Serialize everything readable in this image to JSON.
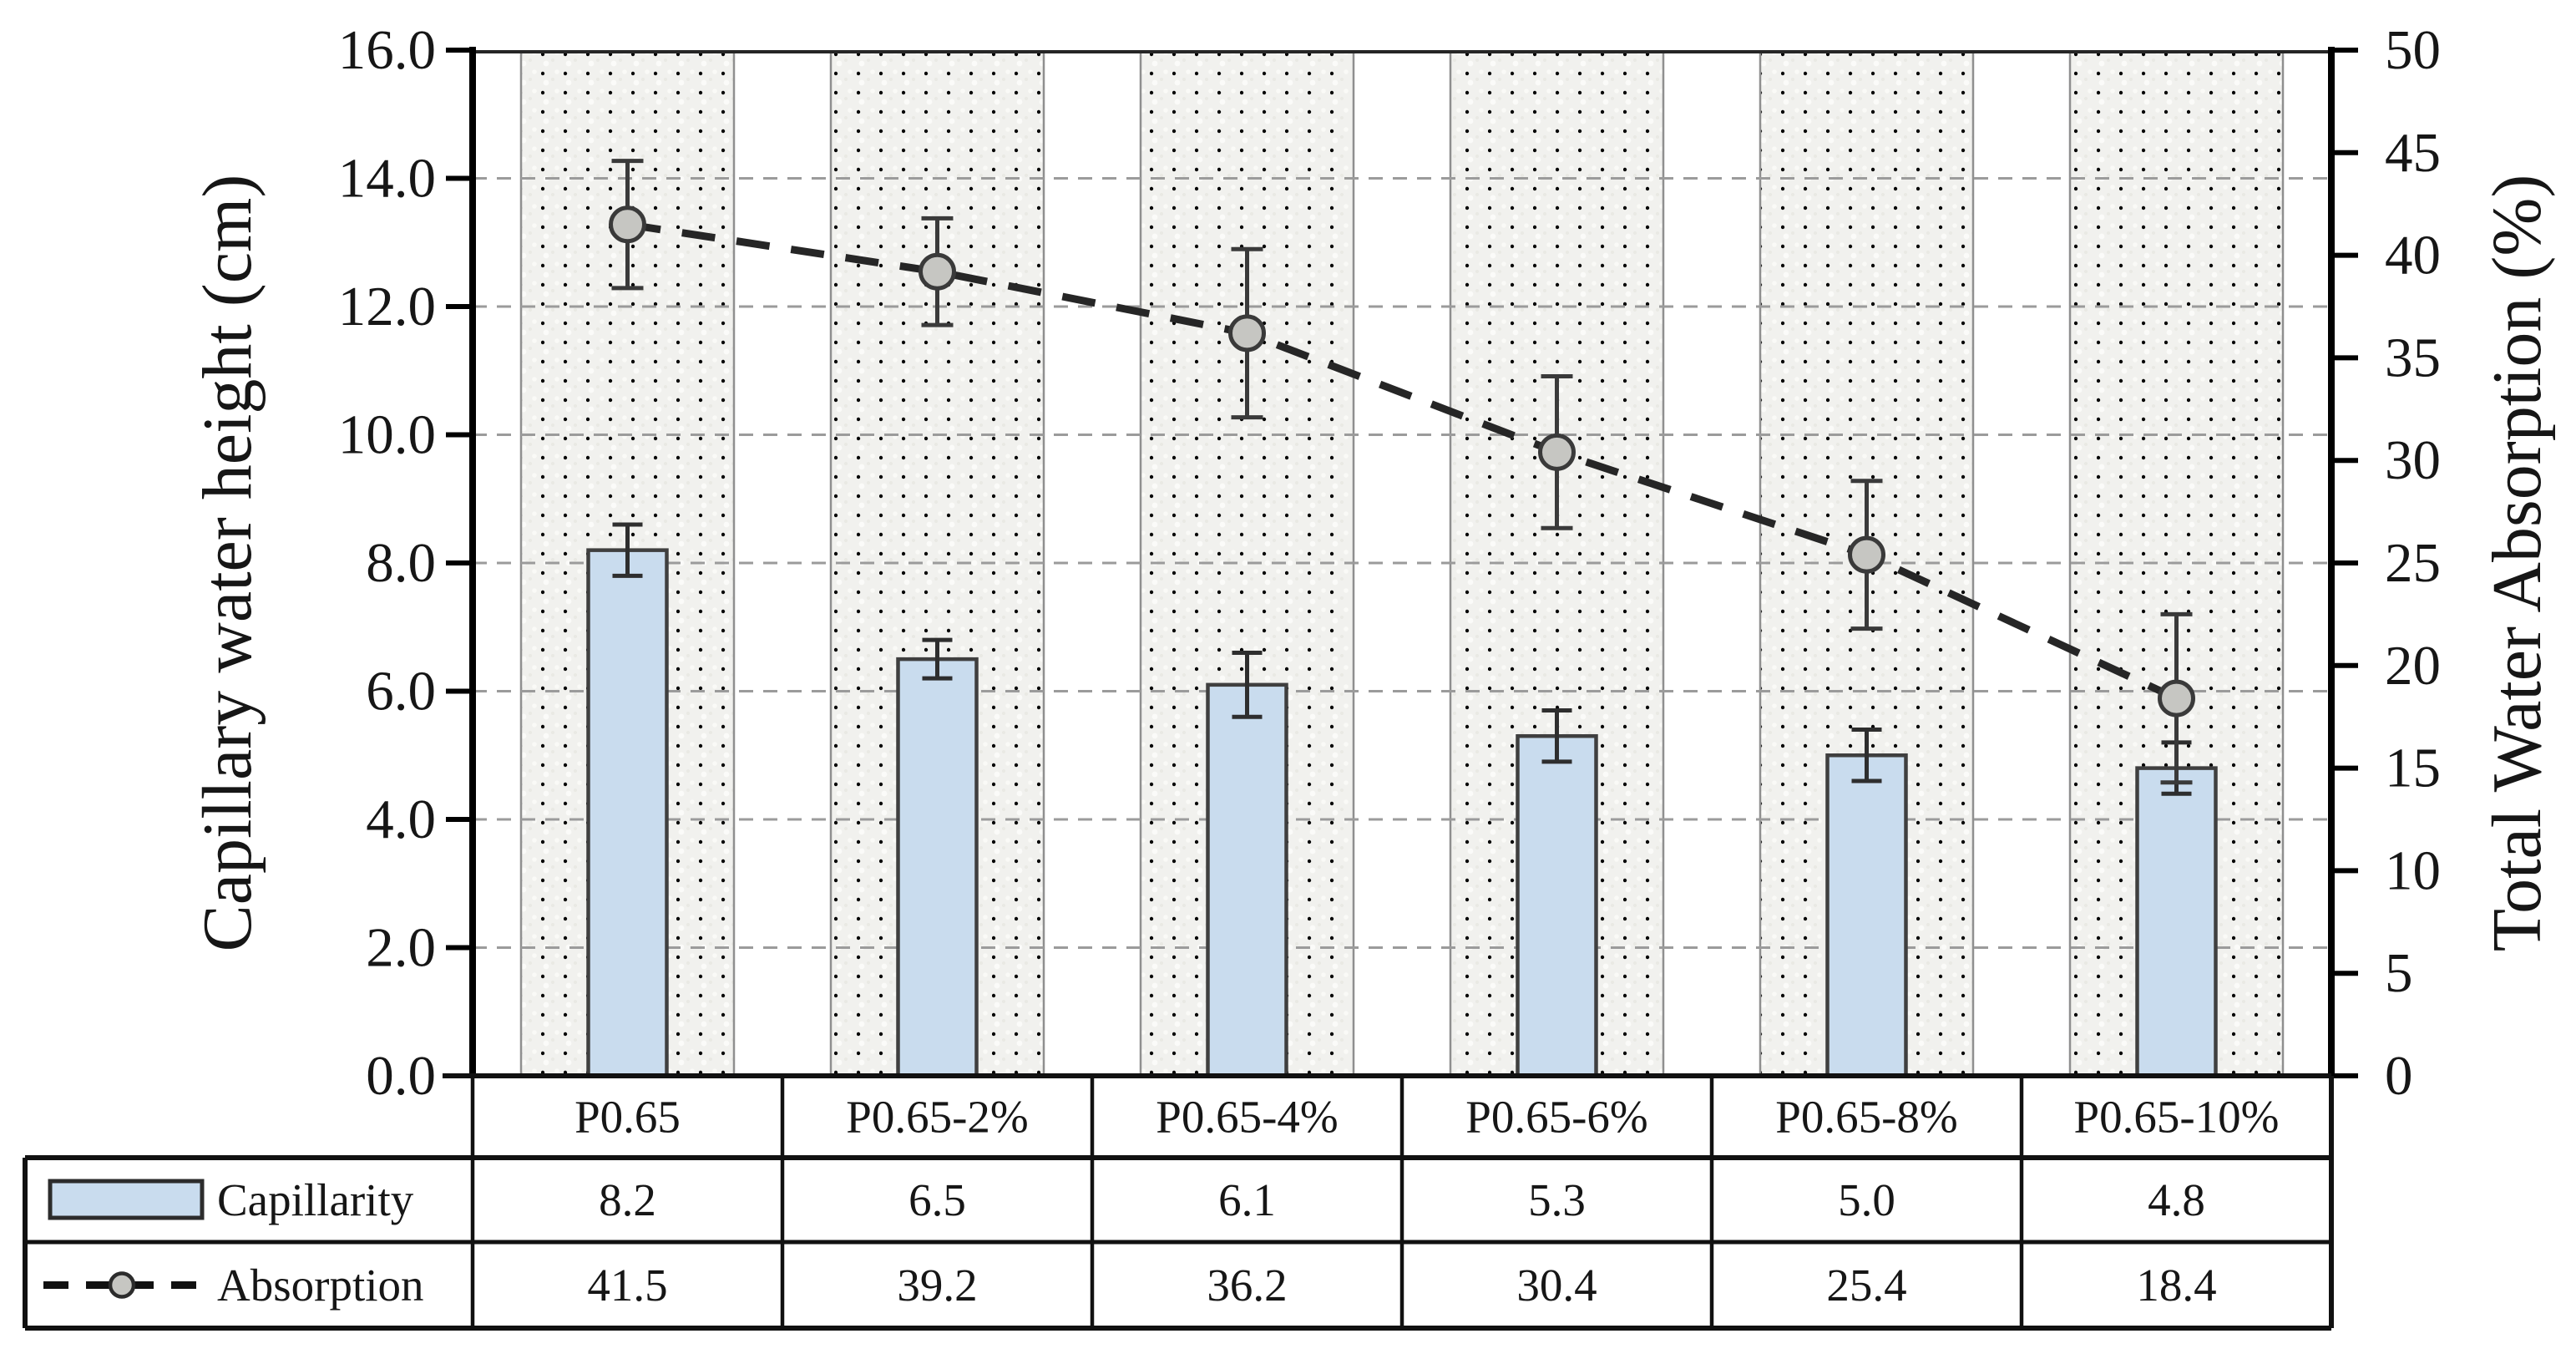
{
  "chart_data": {
    "type": "bar+line-combo",
    "title": "",
    "categories": [
      "P0.65",
      "P0.65-2%",
      "P0.65-4%",
      "P0.65-6%",
      "P0.65-8%",
      "P0.65-10%"
    ],
    "series": [
      {
        "name": "Capillarity",
        "type": "bar",
        "axis": "left",
        "values": [
          8.2,
          6.5,
          6.1,
          5.3,
          5.0,
          4.8
        ],
        "errors": [
          0.4,
          0.3,
          0.5,
          0.4,
          0.4,
          0.4
        ],
        "bar_fill": "#c9dcee",
        "bar_stroke": "#3f3f3f"
      },
      {
        "name": "Absorption",
        "type": "line",
        "axis": "right",
        "values": [
          41.5,
          39.2,
          36.2,
          30.4,
          25.4,
          18.4
        ],
        "errors": [
          3.1,
          2.6,
          4.1,
          3.7,
          3.6,
          4.1
        ],
        "line_style": "dashed",
        "line_color": "#262626",
        "marker": "circle",
        "marker_fill": "#c6c6c2",
        "marker_stroke": "#3a3a3a"
      }
    ],
    "left_axis": {
      "label": "Capillary water height (cm)",
      "min": 0,
      "max": 16,
      "tick_step": 2,
      "tick_labels": [
        "0.0",
        "2.0",
        "4.0",
        "6.0",
        "8.0",
        "10.0",
        "12.0",
        "14.0",
        "16.0"
      ]
    },
    "right_axis": {
      "label": "Total Water Absorption (%)",
      "min": 0,
      "max": 50,
      "tick_step": 5,
      "tick_labels": [
        "0",
        "5",
        "10",
        "15",
        "20",
        "25",
        "30",
        "35",
        "40",
        "45",
        "50"
      ]
    },
    "gridlines": {
      "horizontal": "dashed",
      "color": "#9b9b9b"
    },
    "plot_band_fill": "#f1f1ee",
    "legend_position": "bottom-table"
  },
  "table": {
    "rows": [
      {
        "key": "bar-swatch",
        "label": "Capillarity",
        "values": [
          "8.2",
          "6.5",
          "6.1",
          "5.3",
          "5.0",
          "4.8"
        ]
      },
      {
        "key": "dashed-marker",
        "label": "Absorption",
        "values": [
          "41.5",
          "39.2",
          "36.2",
          "30.4",
          "25.4",
          "18.4"
        ]
      }
    ]
  }
}
